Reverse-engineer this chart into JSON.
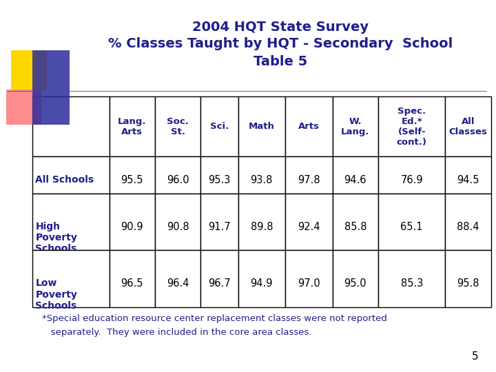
{
  "title_line1": "2004 HQT State Survey",
  "title_line2": "% Classes Taught by HQT - Secondary  School",
  "title_line3": "Table 5",
  "title_color": "#1E1E8C",
  "title_fontsize": 14,
  "text_color": "#1E1E8C",
  "col_headers": [
    "Lang.\nArts",
    "Soc.\nSt.",
    "Sci.",
    "Math",
    "Arts",
    "W.\nLang.",
    "Spec.\nEd.*\n(Self-\ncont.)",
    "All\nClasses"
  ],
  "row_headers": [
    "All Schools",
    "High\nPoverty\nSchools",
    "Low\nPoverty\nSchools"
  ],
  "data": [
    [
      "95.5",
      "96.0",
      "95.3",
      "93.8",
      "97.8",
      "94.6",
      "76.9",
      "94.5"
    ],
    [
      "90.9",
      "90.8",
      "91.7",
      "89.8",
      "92.4",
      "85.8",
      "65.1",
      "88.4"
    ],
    [
      "96.5",
      "96.4",
      "96.7",
      "94.9",
      "97.0",
      "95.0",
      "85.3",
      "95.8"
    ]
  ],
  "footer_line1": "*Special education resource center replacement classes were not reported",
  "footer_line2": "   separately.  They were included in the core area classes.",
  "footer_fontsize": 9.5,
  "page_number": "5",
  "bg_color": "#ffffff",
  "logo_yellow": "#FFD700",
  "logo_red": "#FF6666",
  "logo_blue": "#2B2B9E",
  "table_edge_color": "#000000",
  "data_text_color": "#000000"
}
